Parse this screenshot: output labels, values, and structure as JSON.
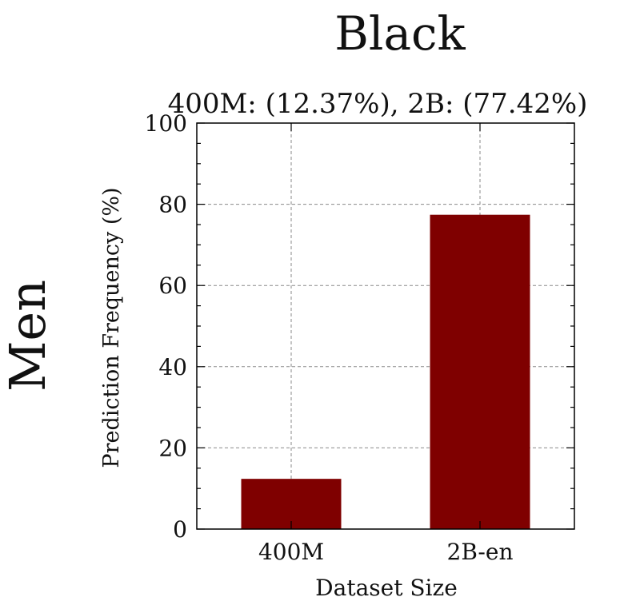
{
  "chart_data": {
    "type": "bar",
    "title": "Black",
    "subtitle": "400M: (12.37%), 2B: (77.42%)",
    "row_label": "Men",
    "xlabel": "Dataset Size",
    "ylabel": "Prediction Frequency (%)",
    "categories": [
      "400M",
      "2B-en"
    ],
    "values": [
      12.37,
      77.42
    ],
    "ylim": [
      0,
      100
    ],
    "yticks": [
      0,
      20,
      40,
      60,
      80,
      100
    ],
    "grid": true,
    "bar_color": "#7f0000"
  }
}
